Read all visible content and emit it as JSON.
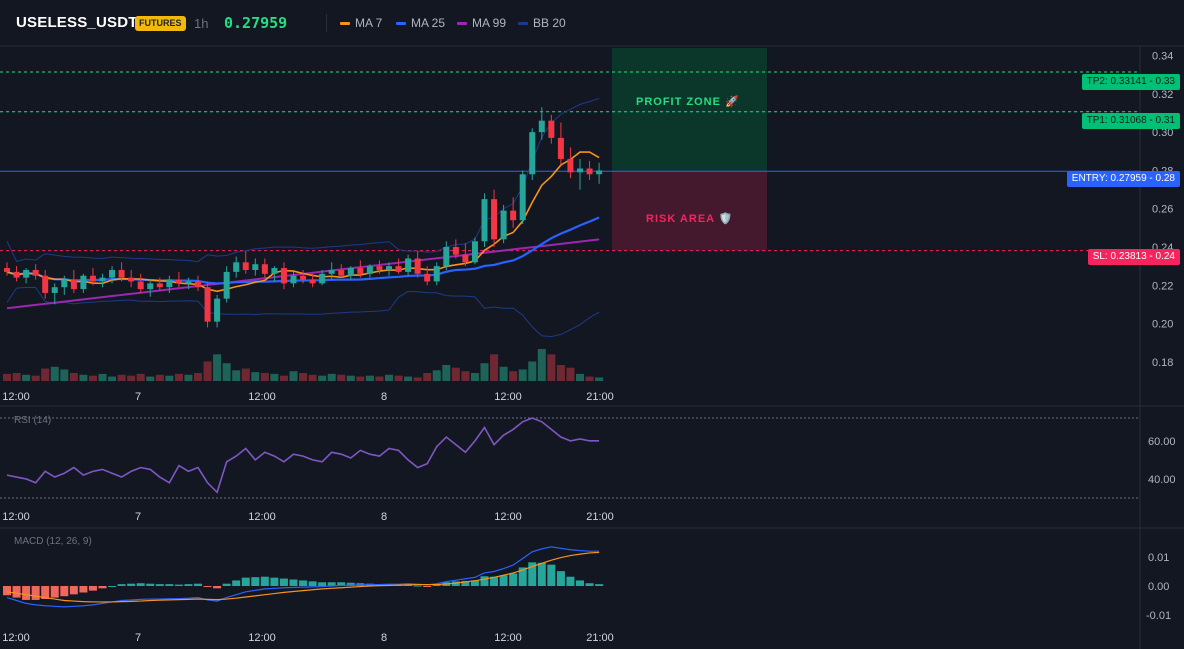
{
  "header": {
    "symbol": "USELESS_USDT",
    "badge": "FUTURES",
    "timeframe": "1h",
    "last_price": "0.27959",
    "legends": [
      {
        "label": "MA 7",
        "color": "#f7931a"
      },
      {
        "label": "MA 25",
        "color": "#2962ff"
      },
      {
        "label": "MA 99",
        "color": "#9c27b0"
      },
      {
        "label": "BB 20",
        "color": "#1e3a8a"
      }
    ]
  },
  "zones": {
    "profit_label": "PROFIT ZONE 🚀",
    "risk_label": "RISK AREA 🛡️",
    "profit_color": "#0b3b2c",
    "risk_color": "#4a1930"
  },
  "levels": {
    "tp2": {
      "label": "TP2: 0.33141 - 0.33",
      "value": 0.33141,
      "color": "#00c076"
    },
    "tp1": {
      "label": "TP1: 0.31068 - 0.31",
      "value": 0.31068,
      "color": "#00c076"
    },
    "entry": {
      "label": "ENTRY: 0.27959 - 0.28",
      "value": 0.27959,
      "color": "#2962ff"
    },
    "sl": {
      "label": "SL: 0.23813 - 0.24",
      "value": 0.23813,
      "color": "#f6245e"
    }
  },
  "price_axis": {
    "ticks": [
      "0.34",
      "0.32",
      "0.30",
      "0.28",
      "0.26",
      "0.24",
      "0.22",
      "0.20",
      "0.18"
    ],
    "range": [
      0.17,
      0.345
    ]
  },
  "time_axis": {
    "labels": [
      "12:00",
      "7",
      "12:00",
      "8",
      "12:00",
      "21:00"
    ]
  },
  "rsi": {
    "label": "RSI (14)",
    "ticks": [
      "60.00",
      "40.00"
    ]
  },
  "macd": {
    "label": "MACD (12, 26, 9)",
    "ticks": [
      "0.01",
      "0.00",
      "-0.01"
    ]
  },
  "colors": {
    "up": "#26a69a",
    "down": "#f23645",
    "ma7": "#f7931a",
    "ma25": "#2962ff",
    "ma99": "#9c27b0",
    "bb": "#1e3a8a",
    "rsi": "#7e57c2",
    "macd": "#2962ff",
    "signal": "#f7931a"
  },
  "chart_data": {
    "type": "candlestick",
    "candles": [
      [
        0.229,
        0.232,
        0.225,
        0.227
      ],
      [
        0.227,
        0.23,
        0.222,
        0.224
      ],
      [
        0.224,
        0.229,
        0.221,
        0.228
      ],
      [
        0.228,
        0.231,
        0.223,
        0.225
      ],
      [
        0.225,
        0.228,
        0.213,
        0.216
      ],
      [
        0.216,
        0.221,
        0.21,
        0.219
      ],
      [
        0.219,
        0.225,
        0.215,
        0.223
      ],
      [
        0.223,
        0.228,
        0.216,
        0.218
      ],
      [
        0.218,
        0.226,
        0.216,
        0.225
      ],
      [
        0.225,
        0.229,
        0.22,
        0.222
      ],
      [
        0.222,
        0.226,
        0.219,
        0.224
      ],
      [
        0.224,
        0.23,
        0.221,
        0.228
      ],
      [
        0.228,
        0.232,
        0.222,
        0.224
      ],
      [
        0.224,
        0.228,
        0.219,
        0.222
      ],
      [
        0.222,
        0.226,
        0.216,
        0.218
      ],
      [
        0.218,
        0.223,
        0.214,
        0.221
      ],
      [
        0.221,
        0.224,
        0.217,
        0.219
      ],
      [
        0.219,
        0.225,
        0.216,
        0.223
      ],
      [
        0.223,
        0.227,
        0.219,
        0.221
      ],
      [
        0.221,
        0.224,
        0.218,
        0.222
      ],
      [
        0.222,
        0.225,
        0.217,
        0.219
      ],
      [
        0.219,
        0.222,
        0.198,
        0.201
      ],
      [
        0.201,
        0.215,
        0.198,
        0.213
      ],
      [
        0.213,
        0.23,
        0.211,
        0.227
      ],
      [
        0.227,
        0.235,
        0.224,
        0.232
      ],
      [
        0.232,
        0.238,
        0.226,
        0.228
      ],
      [
        0.228,
        0.234,
        0.225,
        0.231
      ],
      [
        0.231,
        0.234,
        0.224,
        0.226
      ],
      [
        0.226,
        0.23,
        0.222,
        0.229
      ],
      [
        0.229,
        0.232,
        0.218,
        0.221
      ],
      [
        0.221,
        0.227,
        0.219,
        0.225
      ],
      [
        0.225,
        0.228,
        0.221,
        0.223
      ],
      [
        0.223,
        0.226,
        0.219,
        0.221
      ],
      [
        0.221,
        0.228,
        0.22,
        0.226
      ],
      [
        0.226,
        0.232,
        0.223,
        0.228
      ],
      [
        0.228,
        0.231,
        0.224,
        0.225
      ],
      [
        0.225,
        0.23,
        0.223,
        0.229
      ],
      [
        0.229,
        0.233,
        0.224,
        0.226
      ],
      [
        0.226,
        0.231,
        0.224,
        0.23
      ],
      [
        0.23,
        0.233,
        0.226,
        0.228
      ],
      [
        0.228,
        0.232,
        0.225,
        0.23
      ],
      [
        0.23,
        0.234,
        0.226,
        0.227
      ],
      [
        0.227,
        0.236,
        0.225,
        0.234
      ],
      [
        0.234,
        0.238,
        0.224,
        0.226
      ],
      [
        0.226,
        0.23,
        0.22,
        0.222
      ],
      [
        0.222,
        0.232,
        0.22,
        0.23
      ],
      [
        0.23,
        0.243,
        0.228,
        0.24
      ],
      [
        0.24,
        0.244,
        0.234,
        0.236
      ],
      [
        0.236,
        0.242,
        0.23,
        0.232
      ],
      [
        0.232,
        0.245,
        0.231,
        0.243
      ],
      [
        0.243,
        0.268,
        0.24,
        0.265
      ],
      [
        0.265,
        0.27,
        0.24,
        0.244
      ],
      [
        0.244,
        0.262,
        0.242,
        0.259
      ],
      [
        0.259,
        0.266,
        0.25,
        0.254
      ],
      [
        0.254,
        0.28,
        0.252,
        0.278
      ],
      [
        0.278,
        0.302,
        0.275,
        0.3
      ],
      [
        0.3,
        0.313,
        0.296,
        0.306
      ],
      [
        0.306,
        0.309,
        0.294,
        0.297
      ],
      [
        0.297,
        0.305,
        0.283,
        0.286
      ],
      [
        0.286,
        0.292,
        0.276,
        0.279
      ],
      [
        0.279,
        0.286,
        0.27,
        0.281
      ],
      [
        0.281,
        0.285,
        0.275,
        0.278
      ],
      [
        0.278,
        0.284,
        0.273,
        0.28
      ]
    ],
    "volumes": [
      8,
      9,
      7,
      6,
      14,
      16,
      13,
      9,
      7,
      6,
      8,
      5,
      7,
      6,
      8,
      5,
      7,
      6,
      8,
      7,
      9,
      22,
      30,
      20,
      12,
      14,
      10,
      9,
      8,
      6,
      11,
      9,
      7,
      6,
      8,
      7,
      6,
      5,
      6,
      5,
      7,
      6,
      5,
      4,
      9,
      12,
      18,
      15,
      11,
      9,
      20,
      30,
      16,
      11,
      13,
      22,
      36,
      30,
      18,
      15,
      8,
      5,
      4
    ],
    "rsi": [
      42,
      41,
      40,
      38,
      44,
      41,
      43,
      46,
      42,
      44,
      45,
      43,
      41,
      44,
      46,
      45,
      41,
      38,
      47,
      44,
      46,
      38,
      33,
      49,
      52,
      56,
      50,
      54,
      52,
      49,
      53,
      52,
      50,
      49,
      54,
      53,
      51,
      55,
      53,
      52,
      56,
      55,
      50,
      46,
      48,
      57,
      62,
      58,
      54,
      60,
      67,
      58,
      63,
      66,
      70,
      72,
      70,
      66,
      62,
      60,
      61,
      60,
      60
    ],
    "macd": [
      -0.004,
      -0.005,
      -0.006,
      -0.0065,
      -0.0068,
      -0.007,
      -0.0072,
      -0.007,
      -0.0068,
      -0.0065,
      -0.006,
      -0.0055,
      -0.005,
      -0.0048,
      -0.0046,
      -0.0045,
      -0.0045,
      -0.0044,
      -0.0044,
      -0.0042,
      -0.004,
      -0.0048,
      -0.0052,
      -0.004,
      -0.003,
      -0.002,
      -0.0015,
      -0.001,
      -0.0008,
      -0.0006,
      -0.0005,
      -0.0004,
      -0.0003,
      -0.0002,
      0.0,
      0.0002,
      0.0003,
      0.0004,
      0.0005,
      0.0005,
      0.0006,
      0.0006,
      0.0008,
      0.0006,
      0.0004,
      0.0008,
      0.0015,
      0.002,
      0.0025,
      0.003,
      0.0045,
      0.005,
      0.006,
      0.0072,
      0.0095,
      0.0118,
      0.0128,
      0.0135,
      0.013,
      0.0125,
      0.0122,
      0.012,
      0.012
    ],
    "signal": [
      -0.002,
      -0.0025,
      -0.003,
      -0.0035,
      -0.004,
      -0.0045,
      -0.005,
      -0.0052,
      -0.0054,
      -0.0055,
      -0.0055,
      -0.0055,
      -0.0054,
      -0.0053,
      -0.0052,
      -0.005,
      -0.0049,
      -0.0048,
      -0.0047,
      -0.0046,
      -0.0045,
      -0.0046,
      -0.0047,
      -0.0045,
      -0.0042,
      -0.0038,
      -0.0034,
      -0.003,
      -0.0026,
      -0.0022,
      -0.0019,
      -0.0016,
      -0.0013,
      -0.001,
      -0.0008,
      -0.0006,
      -0.0004,
      -0.0002,
      0.0,
      0.0001,
      0.0002,
      0.0003,
      0.0004,
      0.0005,
      0.0005,
      0.0005,
      0.0007,
      0.001,
      0.0014,
      0.0018,
      0.0024,
      0.003,
      0.0037,
      0.0045,
      0.0055,
      0.0067,
      0.0078,
      0.0089,
      0.0098,
      0.0105,
      0.011,
      0.0114,
      0.0116
    ]
  }
}
